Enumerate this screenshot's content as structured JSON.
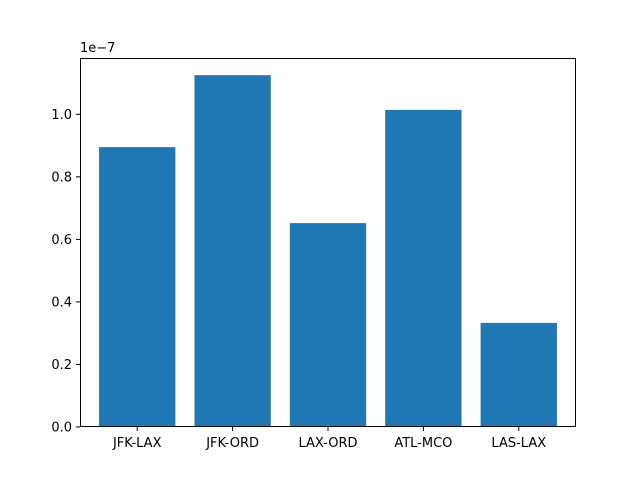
{
  "chart_data": {
    "type": "bar",
    "title": "",
    "xlabel": "",
    "ylabel": "",
    "categories": [
      "JFK-LAX",
      "JFK-ORD",
      "LAX-ORD",
      "ATL-MCO",
      "LAS-LAX"
    ],
    "values": [
      8.95e-08,
      1.125e-07,
      6.52e-08,
      1.014e-07,
      3.33e-08
    ],
    "ylim": [
      0,
      1.18e-07
    ],
    "yticks": [
      0,
      2e-08,
      4e-08,
      6e-08,
      8e-08,
      1e-07
    ],
    "ytick_labels": [
      "0.0",
      "0.2",
      "0.4",
      "0.6",
      "0.8",
      "1.0"
    ],
    "y_offset_label": "1e−7",
    "bar_color": "#1f77b4",
    "grid": false,
    "legend": "none"
  }
}
